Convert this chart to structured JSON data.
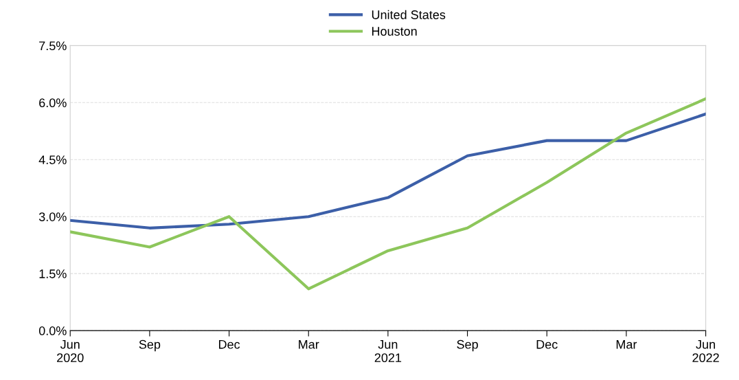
{
  "chart_data": {
    "type": "line",
    "categories": [
      "Jun\n2020",
      "Sep",
      "Dec",
      "Mar",
      "Jun\n2021",
      "Sep",
      "Dec",
      "Mar",
      "Jun\n2022"
    ],
    "series": [
      {
        "name": "United States",
        "color": "#3c5fa8",
        "values": [
          2.9,
          2.7,
          2.8,
          3.0,
          3.5,
          4.6,
          5.0,
          5.0,
          5.7
        ]
      },
      {
        "name": "Houston",
        "color": "#8dc65b",
        "values": [
          2.6,
          2.2,
          3.0,
          1.1,
          2.1,
          2.7,
          3.9,
          5.2,
          6.1
        ]
      }
    ],
    "ylim": [
      0,
      7.5
    ],
    "yticks": [
      {
        "value": 0,
        "label": "0.0%"
      },
      {
        "value": 1.5,
        "label": "1.5%"
      },
      {
        "value": 3.0,
        "label": "3.0%"
      },
      {
        "value": 4.5,
        "label": "4.5%"
      },
      {
        "value": 6.0,
        "label": "6.0%"
      },
      {
        "value": 7.5,
        "label": "7.5%"
      }
    ],
    "grid": "y",
    "legend": "top",
    "marker": "none",
    "line_style": "solid"
  }
}
